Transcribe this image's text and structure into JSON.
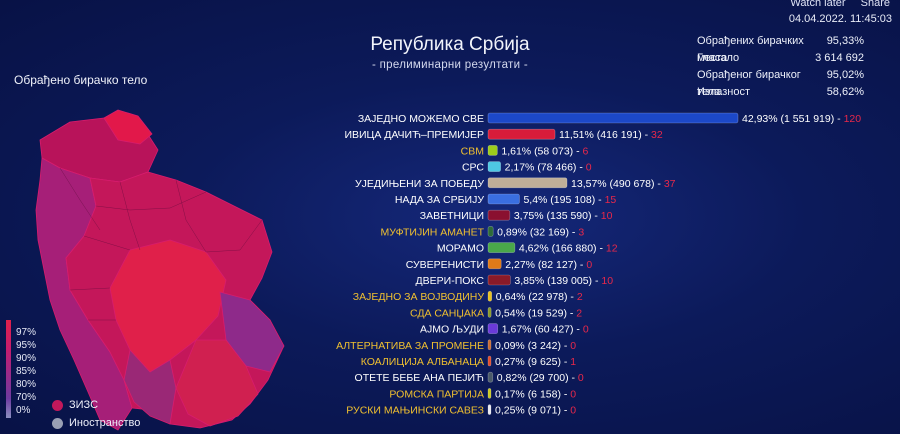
{
  "header": {
    "youtube_links": [
      "Watch later",
      "Share"
    ],
    "timestamp": "04.04.2022. 11:45:03",
    "title": "Република Србија",
    "subtitle": "- прелиминарни резултати -"
  },
  "stats": [
    {
      "label": "Обрађених бирачких места",
      "value": "95,33%"
    },
    {
      "label": "Гласало",
      "value": "3 614 692"
    },
    {
      "label": "Обрађеног бирачког тела",
      "value": "95,02%"
    },
    {
      "label": "Излазност",
      "value": "58,62%"
    }
  ],
  "map": {
    "title": "Обрађено бирачко тело",
    "scale_labels": [
      "97%",
      "95%",
      "90%",
      "85%",
      "80%",
      "70%",
      "0%"
    ],
    "legend": [
      {
        "label": "ЗИЗС",
        "color": "#c2185b"
      },
      {
        "label": "Иностранство",
        "color": "#9aa0b4"
      }
    ]
  },
  "chart_data": {
    "type": "bar",
    "orientation": "horizontal",
    "categories": [
      "ЗАЈЕДНО МОЖЕМО СВЕ",
      "ИВИЦА ДАЧИЋ–ПРЕМИЈЕР",
      "СВМ",
      "СРС",
      "УЈЕДИЊЕНИ ЗА ПОБЕДУ",
      "НАДА ЗА СРБИЈУ",
      "ЗАВЕТНИЦИ",
      "МУФТИЈИН АМАНЕТ",
      "МОРАМО",
      "СУВЕРЕНИСТИ",
      "ДВЕРИ-ПОКС",
      "ЗАЈЕДНО ЗА ВОЈВОДИНУ",
      "СДА САНЏАКА",
      "АЈМО ЉУДИ",
      "АЛТЕРНАТИВА ЗА ПРОМЕНЕ",
      "КОАЛИЦИЈА АЛБАНАЦА",
      "ОТЕТЕ БЕБЕ АНА ПЕЈИЋ",
      "РОМСКА ПАРТИЈА",
      "РУСКИ МАЊИНСКИ САВЕЗ"
    ],
    "values": [
      42.93,
      11.51,
      1.61,
      2.17,
      13.57,
      5.4,
      3.75,
      0.89,
      4.62,
      2.27,
      3.85,
      0.64,
      0.54,
      1.67,
      0.09,
      0.27,
      0.82,
      0.17,
      0.25
    ],
    "value_labels": [
      "42,93% (1 551 919)",
      "11,51% (416 191)",
      "1,61% (58 073)",
      "2,17% (78 466)",
      "13,57% (490 678)",
      "5,4% (195 108)",
      "3,75% (135 590)",
      "0,89% (32 169)",
      "4,62% (166 880)",
      "2,27% (82 127)",
      "3,85% (139 005)",
      "0,64% (22 978)",
      "0,54% (19 529)",
      "1,67% (60 427)",
      "0,09% (3 242)",
      "0,27% (9 625)",
      "0,82% (29 700)",
      "0,17% (6 158)",
      "0,25% (9 071)"
    ],
    "seats": [
      120,
      32,
      6,
      0,
      37,
      15,
      10,
      3,
      12,
      0,
      10,
      2,
      2,
      0,
      0,
      1,
      0,
      0,
      0
    ],
    "colors": [
      "#1c48c8",
      "#d81c3a",
      "#9ccc1c",
      "#4ec8e4",
      "#bfae98",
      "#3a6ee0",
      "#8a1030",
      "#2e6a3a",
      "#4aa84a",
      "#e07a18",
      "#8a1a28",
      "#e8c020",
      "#8a9a2a",
      "#6a3ad8",
      "#c86a30",
      "#e04a2a",
      "#4a5a6a",
      "#c8c820",
      "#e8e8f0"
    ],
    "minority": [
      false,
      false,
      true,
      false,
      false,
      false,
      false,
      true,
      false,
      false,
      false,
      true,
      true,
      false,
      true,
      true,
      false,
      true,
      true
    ],
    "label_colors": {
      "normal": "#ffffff",
      "minority": "#f0c030",
      "seats": "#e8284a"
    }
  }
}
